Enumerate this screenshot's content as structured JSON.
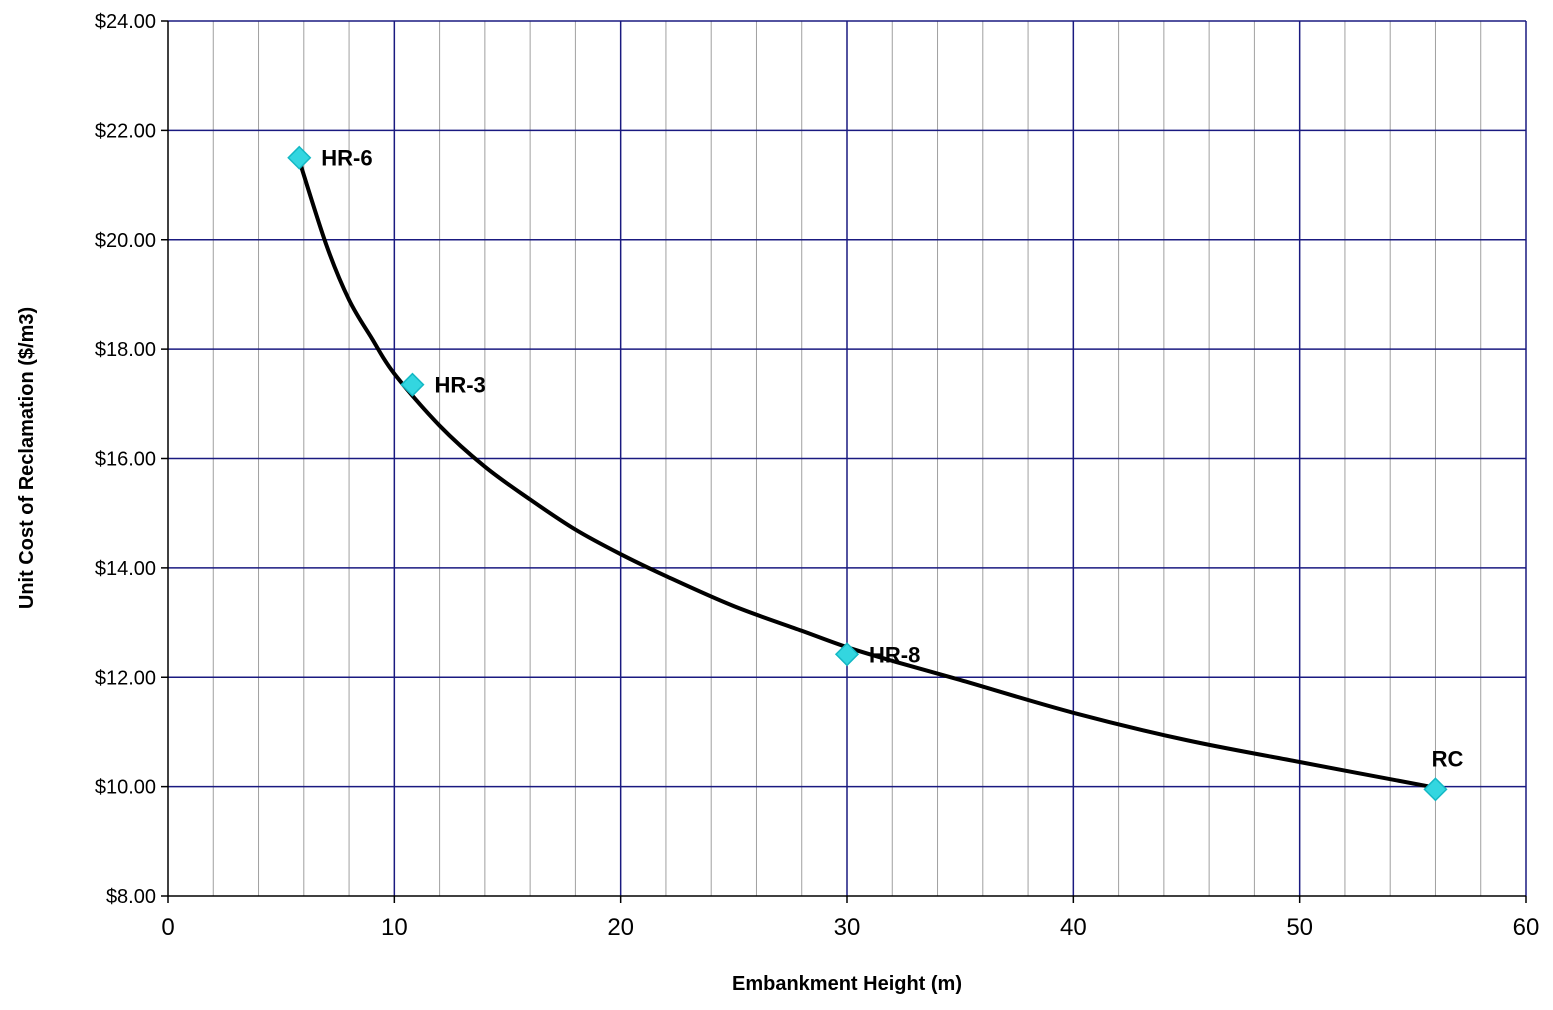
{
  "chart_data": {
    "type": "scatter",
    "xlabel": "Embankment Height (m)",
    "ylabel": "Unit Cost of Reclamation ($/m3)",
    "xlim": [
      0,
      60
    ],
    "ylim": [
      8,
      24
    ],
    "x_ticks": [
      "0",
      "10",
      "20",
      "30",
      "40",
      "50",
      "60"
    ],
    "y_ticks": [
      "$8.00",
      "$10.00",
      "$12.00",
      "$14.00",
      "$16.00",
      "$18.00",
      "$20.00",
      "$22.00",
      "$24.00"
    ],
    "grid": true,
    "points": [
      {
        "label": "HR-6",
        "x": 5.8,
        "y": 21.5
      },
      {
        "label": "HR-3",
        "x": 10.8,
        "y": 17.35
      },
      {
        "label": "HR-8",
        "x": 30.0,
        "y": 12.42
      },
      {
        "label": "RC",
        "x": 56.0,
        "y": 9.95
      }
    ],
    "trendline": {
      "type": "power",
      "x": [
        5.8,
        7,
        8,
        9,
        10,
        12,
        14,
        16,
        18,
        20,
        22,
        25,
        28,
        30,
        32,
        35,
        40,
        45,
        50,
        56
      ],
      "y": [
        21.45,
        19.9,
        18.9,
        18.2,
        17.55,
        16.6,
        15.85,
        15.25,
        14.7,
        14.25,
        13.85,
        13.3,
        12.85,
        12.55,
        12.3,
        11.95,
        11.35,
        10.85,
        10.45,
        9.98
      ]
    },
    "colors": {
      "marker": "#33d6e0",
      "marker_stroke": "#13b8c4",
      "trendline": "#000000",
      "major_grid": "#1a1a80",
      "minor_grid": "#a0a0a0",
      "axis": "#000000"
    }
  }
}
